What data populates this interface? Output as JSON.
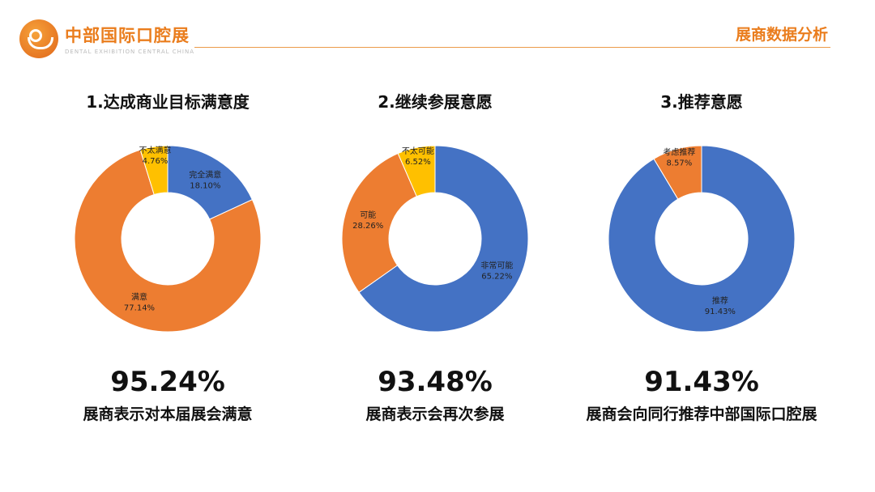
{
  "header": {
    "logo_cn": "中部国际口腔展",
    "logo_en": "DENTAL EXHIBITION CENTRAL CHINA",
    "section_title": "展商数据分析"
  },
  "colors": {
    "blue": "#4472C4",
    "orange": "#ED7D31",
    "yellow": "#FFC000",
    "accent": "#EA7D1D"
  },
  "chart_data": [
    {
      "type": "pie",
      "title": "1.达成商业目标满意度",
      "slices": [
        {
          "label": "完全满意",
          "value": 18.1,
          "pct": "18.10%",
          "color": "#4472C4"
        },
        {
          "label": "满意",
          "value": 77.14,
          "pct": "77.14%",
          "color": "#ED7D31"
        },
        {
          "label": "不太满意",
          "value": 4.76,
          "pct": "4.76%",
          "color": "#FFC000"
        }
      ],
      "headline": "95.24%",
      "caption": "展商表示对本届展会满意"
    },
    {
      "type": "pie",
      "title": "2.继续参展意愿",
      "slices": [
        {
          "label": "非常可能",
          "value": 65.22,
          "pct": "65.22%",
          "color": "#4472C4"
        },
        {
          "label": "可能",
          "value": 28.26,
          "pct": "28.26%",
          "color": "#ED7D31"
        },
        {
          "label": "不太可能",
          "value": 6.52,
          "pct": "6.52%",
          "color": "#FFC000"
        }
      ],
      "headline": "93.48%",
      "caption": "展商表示会再次参展"
    },
    {
      "type": "pie",
      "title": "3.推荐意愿",
      "slices": [
        {
          "label": "推荐",
          "value": 91.43,
          "pct": "91.43%",
          "color": "#4472C4"
        },
        {
          "label": "考虑推荐",
          "value": 8.57,
          "pct": "8.57%",
          "color": "#ED7D31"
        }
      ],
      "headline": "91.43%",
      "caption": "展商会向同行推荐中部国际口腔展"
    }
  ]
}
